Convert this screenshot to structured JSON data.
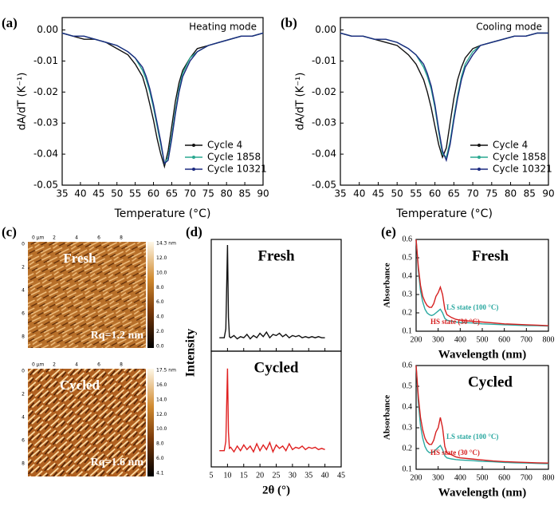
{
  "chart_data": [
    {
      "type": "line",
      "panel": "(a)",
      "annotation": "Heating mode",
      "xlabel": "Temperature (°C)",
      "ylabel": "dA/dT (K⁻¹)",
      "xlim": [
        35,
        90
      ],
      "xticks": [
        35,
        40,
        45,
        50,
        55,
        60,
        65,
        70,
        75,
        80,
        85,
        90
      ],
      "ylim": [
        -0.05,
        0.004
      ],
      "yticks": [
        -0.05,
        -0.04,
        -0.03,
        -0.02,
        -0.01,
        {
          "value": 0,
          "label": "0.00"
        }
      ],
      "legend": "lower right",
      "x": [
        35,
        38,
        41,
        44,
        47,
        50,
        53,
        55,
        57,
        58,
        59,
        60,
        61,
        62,
        63,
        64,
        65,
        66,
        67,
        68,
        70,
        72,
        75,
        78,
        81,
        84,
        87,
        90
      ],
      "series": [
        {
          "name": "Cycle 4",
          "color": "#111111",
          "values": [
            -0.001,
            -0.002,
            -0.003,
            -0.003,
            -0.004,
            -0.006,
            -0.008,
            -0.011,
            -0.015,
            -0.019,
            -0.024,
            -0.029,
            -0.035,
            -0.04,
            -0.044,
            -0.039,
            -0.031,
            -0.023,
            -0.017,
            -0.013,
            -0.009,
            -0.006,
            -0.005,
            -0.004,
            -0.003,
            -0.002,
            -0.002,
            -0.001
          ]
        },
        {
          "name": "Cycle 1858",
          "color": "#2aa890",
          "values": [
            -0.001,
            -0.002,
            -0.002,
            -0.003,
            -0.004,
            -0.005,
            -0.007,
            -0.009,
            -0.013,
            -0.016,
            -0.02,
            -0.025,
            -0.031,
            -0.037,
            -0.043,
            -0.041,
            -0.034,
            -0.026,
            -0.019,
            -0.014,
            -0.009,
            -0.007,
            -0.005,
            -0.004,
            -0.003,
            -0.002,
            -0.002,
            -0.001
          ]
        },
        {
          "name": "Cycle 10321",
          "color": "#1c2a80",
          "values": [
            -0.001,
            -0.002,
            -0.002,
            -0.003,
            -0.004,
            -0.005,
            -0.007,
            -0.009,
            -0.012,
            -0.015,
            -0.019,
            -0.024,
            -0.03,
            -0.036,
            -0.043,
            -0.042,
            -0.035,
            -0.027,
            -0.02,
            -0.015,
            -0.01,
            -0.007,
            -0.005,
            -0.004,
            -0.003,
            -0.002,
            -0.002,
            -0.001
          ]
        }
      ]
    },
    {
      "type": "line",
      "panel": "(b)",
      "annotation": "Cooling mode",
      "xlabel": "Temperature (°C)",
      "ylabel": "dA/dT (K⁻¹)",
      "xlim": [
        35,
        90
      ],
      "xticks": [
        35,
        40,
        45,
        50,
        55,
        60,
        65,
        70,
        75,
        80,
        85,
        90
      ],
      "ylim": [
        -0.05,
        0.004
      ],
      "yticks": [
        -0.05,
        -0.04,
        -0.03,
        -0.02,
        -0.01,
        {
          "value": 0,
          "label": "0.00"
        }
      ],
      "legend": "lower right",
      "x": [
        35,
        38,
        41,
        44,
        47,
        50,
        53,
        55,
        57,
        58,
        59,
        60,
        61,
        62,
        63,
        64,
        65,
        66,
        67,
        68,
        70,
        72,
        75,
        78,
        81,
        84,
        87,
        90
      ],
      "series": [
        {
          "name": "Cycle 4",
          "color": "#111111",
          "values": [
            -0.001,
            -0.002,
            -0.002,
            -0.003,
            -0.004,
            -0.005,
            -0.008,
            -0.011,
            -0.016,
            -0.02,
            -0.025,
            -0.031,
            -0.037,
            -0.041,
            -0.038,
            -0.03,
            -0.022,
            -0.016,
            -0.012,
            -0.009,
            -0.006,
            -0.005,
            -0.004,
            -0.003,
            -0.002,
            -0.002,
            -0.001,
            -0.001
          ]
        },
        {
          "name": "Cycle 1858",
          "color": "#2aa890",
          "values": [
            -0.001,
            -0.002,
            -0.002,
            -0.003,
            -0.003,
            -0.004,
            -0.006,
            -0.008,
            -0.012,
            -0.015,
            -0.019,
            -0.025,
            -0.033,
            -0.04,
            -0.041,
            -0.036,
            -0.028,
            -0.021,
            -0.015,
            -0.011,
            -0.007,
            -0.005,
            -0.004,
            -0.003,
            -0.002,
            -0.002,
            -0.001,
            -0.001
          ]
        },
        {
          "name": "Cycle 10321",
          "color": "#1c2a80",
          "values": [
            -0.001,
            -0.002,
            -0.002,
            -0.003,
            -0.003,
            -0.004,
            -0.006,
            -0.008,
            -0.011,
            -0.014,
            -0.018,
            -0.024,
            -0.032,
            -0.039,
            -0.042,
            -0.037,
            -0.029,
            -0.022,
            -0.016,
            -0.012,
            -0.008,
            -0.005,
            -0.004,
            -0.003,
            -0.002,
            -0.002,
            -0.001,
            -0.001
          ]
        }
      ]
    },
    {
      "type": "line",
      "panel": "(d)",
      "title": "Fresh",
      "ylabel": "Intensity",
      "xlim": [
        5,
        45
      ],
      "xticks": [
        5,
        10,
        15,
        20,
        25,
        30,
        35,
        40,
        45
      ],
      "ylim": [
        0,
        100
      ],
      "x": [
        7.5,
        9,
        9.5,
        10,
        10.3,
        10.6,
        11,
        12,
        13,
        14,
        15,
        16,
        17,
        18,
        19,
        20,
        21,
        22,
        23,
        24,
        25,
        26,
        27,
        28,
        29,
        30,
        31,
        32,
        33,
        34,
        35,
        36,
        37,
        38,
        39,
        40
      ],
      "series": [
        {
          "color": "#111111",
          "values": [
            12,
            12,
            20,
            95,
            30,
            13,
            12,
            14,
            11,
            13,
            12,
            15,
            11,
            14,
            12,
            16,
            13,
            17,
            12,
            15,
            14,
            16,
            13,
            15,
            12,
            14,
            13,
            14,
            12,
            13,
            12,
            13,
            12,
            13,
            12,
            12
          ]
        }
      ]
    },
    {
      "type": "line",
      "title": "Cycled",
      "xlabel": "2θ (°)",
      "xlim": [
        5,
        45
      ],
      "xticks": [
        5,
        10,
        15,
        20,
        25,
        30,
        35,
        40,
        45
      ],
      "ylim": [
        0,
        100
      ],
      "x": [
        7.5,
        9,
        9.5,
        10,
        10.3,
        10.6,
        11,
        12,
        13,
        14,
        15,
        16,
        17,
        18,
        19,
        20,
        21,
        22,
        23,
        24,
        25,
        26,
        27,
        28,
        29,
        30,
        31,
        32,
        33,
        34,
        35,
        36,
        37,
        38,
        39,
        40
      ],
      "series": [
        {
          "color": "#e02020",
          "values": [
            14,
            14,
            22,
            85,
            30,
            16,
            17,
            13,
            18,
            14,
            19,
            15,
            18,
            13,
            20,
            14,
            19,
            15,
            21,
            13,
            19,
            16,
            18,
            14,
            20,
            15,
            17,
            16,
            18,
            15,
            17,
            16,
            17,
            15,
            16,
            15
          ]
        }
      ]
    },
    {
      "type": "line",
      "panel": "(e)",
      "title": "Fresh",
      "xlabel": "Wavelength (nm)",
      "ylabel": "Absorbance",
      "xlim": [
        200,
        800
      ],
      "xticks": [
        200,
        300,
        400,
        500,
        600,
        700,
        800
      ],
      "ylim": [
        0.1,
        0.6
      ],
      "yticks": [
        0.1,
        0.2,
        0.3,
        0.4,
        0.5,
        0.6
      ],
      "x": [
        200,
        210,
        220,
        230,
        240,
        250,
        260,
        270,
        280,
        290,
        300,
        310,
        320,
        330,
        340,
        360,
        380,
        400,
        450,
        500,
        550,
        600,
        650,
        700,
        750,
        800
      ],
      "series": [
        {
          "name": "LS state (100 °C)",
          "color": "#2aa8a0",
          "values": [
            0.6,
            0.43,
            0.32,
            0.26,
            0.22,
            0.2,
            0.19,
            0.185,
            0.19,
            0.2,
            0.21,
            0.22,
            0.2,
            0.17,
            0.16,
            0.155,
            0.15,
            0.148,
            0.145,
            0.14,
            0.138,
            0.135,
            0.133,
            0.131,
            0.13,
            0.128
          ]
        },
        {
          "name": "HS state (30 °C)",
          "color": "#d62020",
          "values": [
            0.6,
            0.45,
            0.35,
            0.29,
            0.26,
            0.24,
            0.23,
            0.23,
            0.25,
            0.29,
            0.31,
            0.34,
            0.3,
            0.22,
            0.19,
            0.175,
            0.165,
            0.16,
            0.155,
            0.15,
            0.145,
            0.14,
            0.138,
            0.135,
            0.133,
            0.13
          ]
        }
      ]
    },
    {
      "type": "line",
      "title": "Cycled",
      "xlabel": "Wavelength (nm)",
      "ylabel": "Absorbance",
      "xlim": [
        200,
        800
      ],
      "xticks": [
        200,
        300,
        400,
        500,
        600,
        700,
        800
      ],
      "ylim": [
        0.1,
        0.6
      ],
      "yticks": [
        0.1,
        0.2,
        0.3,
        0.4,
        0.5,
        0.6
      ],
      "x": [
        200,
        210,
        220,
        230,
        240,
        250,
        260,
        270,
        280,
        290,
        300,
        310,
        320,
        330,
        340,
        360,
        380,
        400,
        450,
        500,
        550,
        600,
        650,
        700,
        750,
        800
      ],
      "series": [
        {
          "name": "LS state (100 °C)",
          "color": "#2aa8a0",
          "values": [
            0.6,
            0.42,
            0.31,
            0.25,
            0.21,
            0.19,
            0.18,
            0.18,
            0.185,
            0.195,
            0.205,
            0.215,
            0.195,
            0.165,
            0.155,
            0.15,
            0.147,
            0.145,
            0.142,
            0.138,
            0.136,
            0.133,
            0.131,
            0.13,
            0.128,
            0.127
          ]
        },
        {
          "name": "HS state (30 °C)",
          "color": "#d62020",
          "values": [
            0.6,
            0.45,
            0.35,
            0.29,
            0.25,
            0.23,
            0.22,
            0.22,
            0.24,
            0.28,
            0.3,
            0.35,
            0.3,
            0.21,
            0.18,
            0.17,
            0.16,
            0.155,
            0.15,
            0.145,
            0.14,
            0.137,
            0.135,
            0.133,
            0.131,
            0.13
          ]
        }
      ]
    }
  ],
  "afm": {
    "panel": "(c)",
    "top_ticks": [
      "0 µm",
      "2",
      "4",
      "6",
      "8"
    ],
    "left_ticks": [
      "0",
      "2",
      "4",
      "6",
      "8"
    ],
    "images": [
      {
        "label": "Fresh",
        "rq": "Rq=1.2 nm",
        "colorbar": [
          "14.3 nm",
          "12.0",
          "10.0",
          "8.0",
          "6.0",
          "4.0",
          "2.0",
          "0.0"
        ]
      },
      {
        "label": "Cycled",
        "rq": "Rq=1.6 nm",
        "colorbar": [
          "17.5 nm",
          "16.0",
          "14.0",
          "12.0",
          "10.0",
          "8.0",
          "6.0",
          "4.1"
        ]
      }
    ]
  }
}
